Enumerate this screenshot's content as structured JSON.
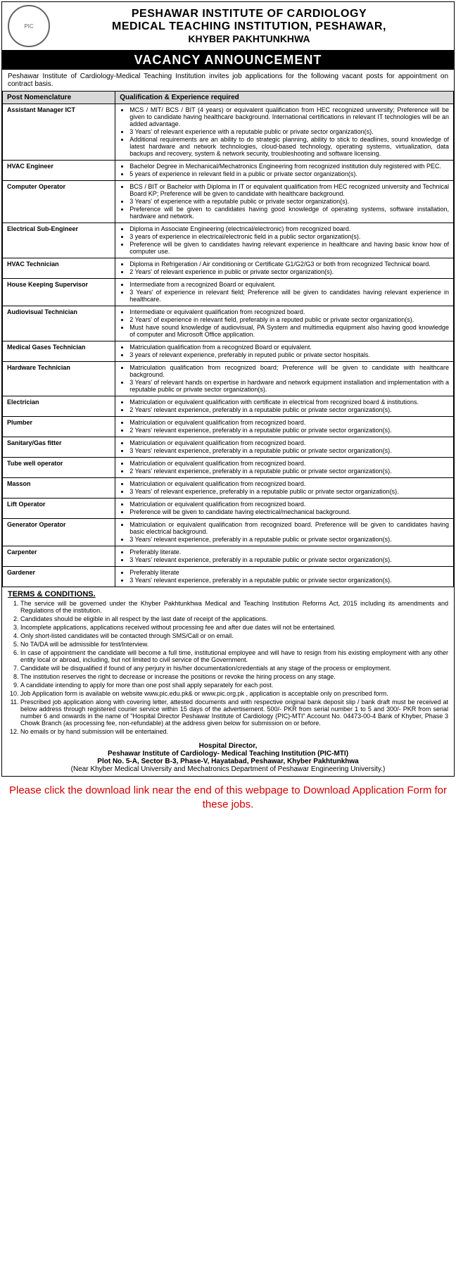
{
  "header": {
    "logo_text": "PIC",
    "line1": "PESHAWAR INSTITUTE OF CARDIOLOGY",
    "line2": "MEDICAL TEACHING INSTITUTION, PESHAWAR,",
    "line3": "KHYBER PAKHTUNKHWA"
  },
  "vacancy_bar": "VACANCY ANNOUNCEMENT",
  "intro": "Peshawar Institute of Cardiology-Medical Teaching Institution invites job applications for the following vacant posts for appointment on contract basis.",
  "table_headers": {
    "post": "Post Nomenclature",
    "qual": "Qualification & Experience required"
  },
  "posts": [
    {
      "name": "Assistant Manager ICT",
      "reqs": [
        "MCS / MIT/ BCS / BIT (4 years) or equivalent qualification from HEC recognized university; Preference will be given to candidate having healthcare background. International certifications in relevant IT technologies will be an added advantage.",
        "3 Years' of relevant experience with a reputable public or private sector organization(s).",
        "Additional requirements are an ability to do strategic planning, ability to stick to deadlines, sound knowledge of latest hardware and network technologies, cloud-based technology, operating systems, virtualization, data backups and recovery, system & network security, troubleshooting and software licensing."
      ]
    },
    {
      "name": "HVAC Engineer",
      "reqs": [
        "Bachelor Degree in Mechanical/Mechatronics Engineering from recognized institution duly registered with PEC.",
        "5 years of experience in relevant field in a public or private sector organization(s)."
      ]
    },
    {
      "name": "Computer Operator",
      "reqs": [
        "BCS / BIT or Bachelor with Diploma in IT or equivalent qualification from HEC recognized university and Technical Board KP; Preference will be given to candidate with healthcare background.",
        "3 Years' of experience with a reputable public or private sector organization(s).",
        "Preference will be given to candidates having good knowledge of operating systems, software installation, hardware and network."
      ]
    },
    {
      "name": "Electrical Sub-Engineer",
      "reqs": [
        "Diploma in Associate Engineering (electrical/electronic) from recognized board.",
        "3 years of experience in electrical/electronic field in a public sector organization(s).",
        "Preference will be given to candidates having relevant experience in healthcare and having basic know how of computer use."
      ]
    },
    {
      "name": "HVAC Technician",
      "reqs": [
        "Diploma in Refrigeration / Air conditioning or Certificate G1/G2/G3 or both from recognized Technical board.",
        "2 Years' of relevant experience in public or private sector organization(s)."
      ]
    },
    {
      "name": "House Keeping Supervisor",
      "reqs": [
        "Intermediate from a recognized Board or equivalent.",
        "3 Years' of experience in relevant field; Preference will be given to candidates having relevant experience in healthcare."
      ]
    },
    {
      "name": "Audiovisual Technician",
      "reqs": [
        "Intermediate or equivalent qualification from recognized board.",
        "2 Years' of experience in relevant field, preferably in a reputed public or private sector organization(s).",
        "Must have sound knowledge of audiovisual, PA System and multimedia equipment also having good knowledge of computer and Microsoft Office application."
      ]
    },
    {
      "name": "Medical Gases Technician",
      "reqs": [
        "Matriculation qualification from a recognized Board or equivalent.",
        "3 years of relevant experience, preferably in reputed public or private sector hospitals."
      ]
    },
    {
      "name": "Hardware Technician",
      "reqs": [
        "Matriculation qualification from recognized board; Preference will be given to candidate with healthcare background.",
        "3 Years' of relevant hands on expertise in hardware and network equipment installation and implementation with a reputable public or private sector organization(s)."
      ]
    },
    {
      "name": "Electrician",
      "reqs": [
        "Matriculation or equivalent qualification with certificate in electrical from recognized board & institutions.",
        "2 Years' relevant experience, preferably in a reputable public or private sector organization(s)."
      ]
    },
    {
      "name": "Plumber",
      "reqs": [
        "Matriculation or equivalent qualification from recognized board.",
        "2 Years' relevant experience, preferably in a reputable public or private sector organization(s)."
      ]
    },
    {
      "name": "Sanitary/Gas fitter",
      "reqs": [
        "Matriculation or equivalent qualification from recognized board.",
        "3 Years' relevant experience, preferably in a reputable public or private sector organization(s)."
      ]
    },
    {
      "name": "Tube well operator",
      "reqs": [
        "Matriculation or equivalent qualification from recognized board.",
        "2 Years' relevant experience, preferably in a reputable public or private sector organization(s)."
      ]
    },
    {
      "name": "Masson",
      "reqs": [
        "Matriculation or equivalent qualification from recognized board.",
        "3 Years' of relevant experience, preferably in a reputable public or private sector organization(s)."
      ]
    },
    {
      "name": "Lift Operator",
      "reqs": [
        "Matriculation or equivalent qualification from recognized board.",
        "Preference will be given to candidate having electrical/mechanical background."
      ]
    },
    {
      "name": "Generator Operator",
      "reqs": [
        "Matriculation or equivalent qualification from recognized board. Preference will be given to candidates having basic electrical background.",
        "3 Years' relevant experience, preferably in a reputable public or private sector organization(s)."
      ]
    },
    {
      "name": "Carpenter",
      "reqs": [
        "Preferably literate.",
        "3 Years' relevant experience, preferably in a reputable public or private sector organization(s)."
      ]
    },
    {
      "name": "Gardener",
      "reqs": [
        "Preferably literate",
        "3 Years' relevant experience, preferably in a reputable public or private sector organization(s)."
      ]
    }
  ],
  "terms_header": "TERMS & CONDITIONS.",
  "terms": [
    "The service will be governed under the Khyber Pakhtunkhwa Medical and Teaching Institution Reforms Act, 2015 including its amendments and Regulations of the institution.",
    "Candidates should be eligible in all respect by the last date of receipt of the applications.",
    "Incomplete applications, applications received without processing fee and after due dates will not be entertained.",
    "Only short-listed candidates will be contacted through SMS/Call or on email.",
    "No TA/DA will be admissible for test/Interview.",
    "In case of appointment the candidate will become a full time, institutional employee and will have to resign from his existing employment with any other entity local or abroad, including, but not limited to civil service of the Government.",
    "Candidate will be disqualified if found of any perjury in his/her documentation/credentials at any stage of the process or employment.",
    "The institution reserves the right to decrease or increase the positions or revoke the hiring process on any stage.",
    "A candidate intending to apply for more than one post shall apply separately for each post.",
    "Job Application form is available on website www.pic.edu.pk& or www.pic.org.pk , application is acceptable only on prescribed form.",
    "Prescribed job application along with covering letter, attested documents and with respective original bank deposit slip / bank draft must be received at below address through registered courier service within 15 days of the advertisement. 500/- PKR from serial number 1 to 5 and 300/- PKR from serial number 6 and onwards in the name of \"Hospital Director Peshawar Institute of Cardiology (PIC)-MTI\" Account No. 04473-00-4 Bank of Khyber, Phase 3 Chowk Branch (as processing fee, non-refundable) at the address given below for submission on or before.",
    "No emails or by hand submission will be entertained."
  ],
  "footer": {
    "title": "Hospital Director,",
    "org": "Peshawar Institute of Cardiology- Medical Teaching Institution (PIC-MTI)",
    "addr": "Plot No. 5-A, Sector B-3, Phase-V, Hayatabad, Peshawar, Khyber Pakhtunkhwa",
    "near": "(Near Khyber Medical University and Mechatronics Department of Peshawar Engineering University.)"
  },
  "note": "Please click the download link near the end of this webpage to Download Application Form for these jobs.",
  "colors": {
    "text": "#000000",
    "bg": "#ffffff",
    "bar_bg": "#000000",
    "bar_fg": "#ffffff",
    "th_bg": "#d9d9d9",
    "note_color": "#d40000"
  }
}
